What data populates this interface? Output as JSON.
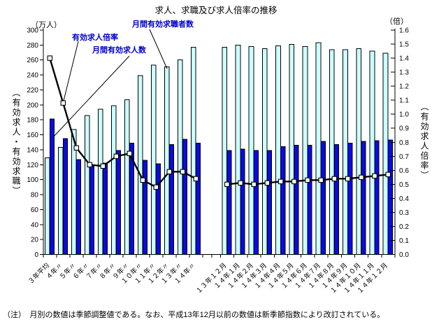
{
  "title": "求人、求職及び求人倍率の推移",
  "note": "（注）　月別の数値は季節調整値である。なお、平成13年12月以前の数値は新季節指数により改訂されている。",
  "left_axis_unit": "（万人）",
  "right_axis_unit": "（倍）",
  "left_axis_title": "（有効求人・有効求職）",
  "right_axis_title": "（有効求人倍率）",
  "series_labels": {
    "seekers": "月間有効求職者数",
    "ratio": "有効求人倍率",
    "openings": "月間有効求人数"
  },
  "colors": {
    "seekers_bar": "#ccffff",
    "openings_bar": "#0a0ae6",
    "ratio_line": "#000000",
    "marker_fill": "#ffffff",
    "annotation_text": "#0000d0",
    "axis": "#000000"
  },
  "chart_data": {
    "type": "bar",
    "subtype": "grouped bars with overlaid line on secondary axis",
    "categories": [
      "３年平均",
      "４年〃",
      "５年〃",
      "６年〃",
      "７年〃",
      "８年〃",
      "９年〃",
      "１０年〃",
      "１１年〃",
      "１２年〃",
      "１３年〃",
      "１４年〃",
      "１３年１２月",
      "１４年１月",
      "１４年２月",
      "１４年３月",
      "１４年４月",
      "１４年５月",
      "１４年６月",
      "１４年７月",
      "１４年８月",
      "１４年９月",
      "１４年１０月",
      "１４年１１月",
      "１４年１２月"
    ],
    "series": [
      {
        "name": "月間有効求職者数",
        "kind": "bar",
        "axis": "left",
        "color": "#ccffff",
        "values": [
          129,
          143,
          167,
          186,
          194,
          199,
          207,
          239,
          253,
          251,
          260,
          277,
          277,
          280,
          278,
          275,
          279,
          281,
          278,
          283,
          274,
          274,
          275,
          272,
          269
        ]
      },
      {
        "name": "月間有効求人数",
        "kind": "bar",
        "axis": "left",
        "color": "#0a0ae6",
        "values": [
          181,
          155,
          127,
          119,
          122,
          139,
          149,
          126,
          121,
          147,
          154,
          149,
          139,
          141,
          139,
          139,
          144,
          146,
          146,
          151,
          147,
          149,
          151,
          152,
          153
        ]
      },
      {
        "name": "有効求人倍率",
        "kind": "line",
        "axis": "right",
        "color": "#000000",
        "values": [
          1.4,
          1.08,
          0.76,
          0.64,
          0.63,
          0.7,
          0.72,
          0.53,
          0.48,
          0.59,
          0.59,
          0.54,
          0.5,
          0.51,
          0.5,
          0.51,
          0.52,
          0.52,
          0.53,
          0.53,
          0.54,
          0.54,
          0.55,
          0.56,
          0.57
        ]
      }
    ],
    "left_axis": {
      "unit": "（万人）",
      "min": 0,
      "max": 300,
      "step": 20,
      "ticks": [
        0,
        20,
        40,
        60,
        80,
        100,
        120,
        140,
        160,
        180,
        200,
        220,
        240,
        260,
        280,
        300
      ]
    },
    "right_axis": {
      "unit": "（倍）",
      "min": 0.0,
      "max": 1.6,
      "step": 0.1,
      "ticks": [
        "0.0",
        "0.1",
        "0.2",
        "0.3",
        "0.4",
        "0.5",
        "0.6",
        "0.7",
        "0.8",
        "0.9",
        "1.0",
        "1.1",
        "1.2",
        "1.3",
        "1.4",
        "1.5",
        "1.6"
      ]
    },
    "section_gap_after_index": 11,
    "grid": false,
    "legend_position": "none (inline blue annotations with leader lines)"
  }
}
